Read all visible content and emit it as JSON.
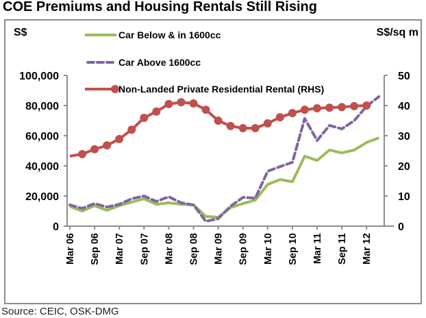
{
  "chart_data": {
    "type": "line",
    "title": "COE Premiums and Housing Rentals Still Rising",
    "source": "Source: CEIC, OSK-DMG",
    "ylabel_left": "S$",
    "ylabel_right": "S$/sq m",
    "ylim_left": [
      0,
      100000
    ],
    "ylim_right": [
      0,
      50
    ],
    "yticks_left": [
      "0",
      "20,000",
      "40,000",
      "60,000",
      "80,000",
      "100,000"
    ],
    "yticks_left_values": [
      0,
      20000,
      40000,
      60000,
      80000,
      100000
    ],
    "yticks_right": [
      "0",
      "10",
      "20",
      "30",
      "40",
      "50"
    ],
    "yticks_right_values": [
      0,
      10,
      20,
      30,
      40,
      50
    ],
    "xtick_labels": [
      "Mar 06",
      "Sep 06",
      "Mar 07",
      "Sep 07",
      "Mar 08",
      "Sep 08",
      "Mar 09",
      "Sep 09",
      "Mar 10",
      "Sep 10",
      "Mar 11",
      "Sep 11",
      "Mar 12"
    ],
    "x": [
      "Mar 06",
      "Jun 06",
      "Sep 06",
      "Dec 06",
      "Mar 07",
      "Jun 07",
      "Sep 07",
      "Dec 07",
      "Mar 08",
      "Jun 08",
      "Sep 08",
      "Dec 08",
      "Mar 09",
      "Jun 09",
      "Sep 09",
      "Dec 09",
      "Mar 10",
      "Jun 10",
      "Sep 10",
      "Dec 10",
      "Mar 11",
      "Jun 11",
      "Sep 11",
      "Dec 11",
      "Mar 12",
      "Jun 12"
    ],
    "grid": false,
    "legend_position": "top-left",
    "series": [
      {
        "name": "Car Below & in 1600cc",
        "axis": "left",
        "style": "solid",
        "color": "#9BBB59",
        "values": [
          13200,
          10000,
          13600,
          10500,
          13600,
          15900,
          18200,
          14500,
          15500,
          14500,
          14100,
          6400,
          5900,
          12300,
          15000,
          17300,
          27700,
          30900,
          29500,
          46400,
          43600,
          50500,
          48600,
          50500,
          55500,
          58600
        ]
      },
      {
        "name": "Car Above 1600cc",
        "axis": "left",
        "style": "dashed",
        "color": "#8064A2",
        "values": [
          14100,
          11800,
          15000,
          12700,
          14500,
          18200,
          20000,
          16400,
          19500,
          15500,
          14100,
          3200,
          5000,
          13200,
          19100,
          18600,
          36400,
          39500,
          42300,
          71400,
          56800,
          66800,
          64500,
          70000,
          79500,
          85900
        ]
      },
      {
        "name": "Non-Landed Private Residential Rental (RHS)",
        "axis": "right",
        "style": "solid-markers",
        "color": "#C0504D",
        "values": [
          23.2,
          23.9,
          25.5,
          26.8,
          28.9,
          32.0,
          35.9,
          38.0,
          40.5,
          41.1,
          40.7,
          38.6,
          35.0,
          33.2,
          32.5,
          32.5,
          34.1,
          36.1,
          37.5,
          38.6,
          39.1,
          39.3,
          39.5,
          39.8,
          40.0,
          null
        ]
      }
    ]
  }
}
